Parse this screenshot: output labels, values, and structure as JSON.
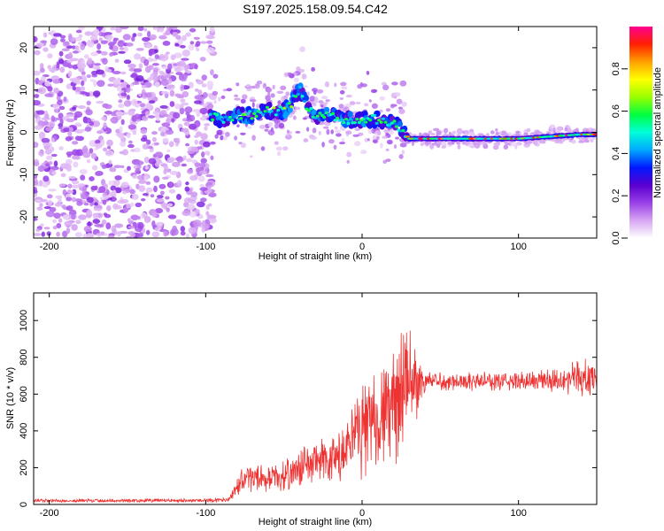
{
  "title": "S197.2025.158.09.54.C42",
  "chart_data": [
    {
      "type": "heatmap",
      "title": "S197.2025.158.09.54.C42",
      "xlabel": "Height of straight line (km)",
      "ylabel": "Frequency (Hz)",
      "xlim": [
        -210,
        150
      ],
      "ylim": [
        -25,
        25
      ],
      "x_ticks": [
        -200,
        -100,
        0,
        100
      ],
      "y_ticks": [
        -20,
        -10,
        0,
        10,
        20
      ],
      "colorbar": {
        "label": "Normalized spectral amplitude",
        "range": [
          0,
          1
        ],
        "ticks": [
          0.0,
          0.2,
          0.4,
          0.6,
          0.8
        ],
        "colormap": [
          "#ffffff",
          "#d7a6f2",
          "#9a40e8",
          "#5a00d0",
          "#0018ff",
          "#00aaff",
          "#00ffd8",
          "#00ff40",
          "#9aff00",
          "#ffff00",
          "#ffa000",
          "#ff2000",
          "#ff0090"
        ]
      },
      "ridge_x": [
        -97,
        -90,
        -80,
        -70,
        -60,
        -50,
        -45,
        -40,
        -35,
        -30,
        -20,
        -10,
        0,
        10,
        20,
        25,
        30,
        40,
        50,
        60,
        80,
        100,
        120,
        140,
        150
      ],
      "ridge_y": [
        4,
        3,
        4,
        4,
        5,
        5,
        7,
        10,
        6,
        4,
        4,
        3,
        3,
        3,
        2,
        1,
        -1.5,
        -1.5,
        -1.5,
        -1.5,
        -1.5,
        -1.5,
        -1,
        -0.5,
        -0.5
      ],
      "noise_region_x": [
        -210,
        -95
      ]
    },
    {
      "type": "line",
      "xlabel": "Height of straight line (km)",
      "ylabel": "SNR (10 * v/v)",
      "xlim": [
        -210,
        150
      ],
      "ylim": [
        0,
        1150
      ],
      "x_ticks": [
        -200,
        -100,
        0,
        100
      ],
      "y_ticks": [
        0,
        200,
        400,
        600,
        800,
        1000
      ],
      "color": "#ee3333",
      "envelope_x": [
        -210,
        -100,
        -85,
        -80,
        -75,
        -60,
        -50,
        -40,
        -30,
        -20,
        -10,
        0,
        10,
        20,
        25,
        30,
        40,
        50,
        100,
        120,
        140,
        150
      ],
      "envelope_mean": [
        20,
        22,
        25,
        90,
        150,
        140,
        150,
        200,
        230,
        230,
        280,
        430,
        480,
        520,
        620,
        650,
        670,
        670,
        670,
        680,
        690,
        680
      ],
      "envelope_spread": [
        12,
        12,
        15,
        60,
        90,
        80,
        90,
        120,
        150,
        160,
        220,
        300,
        330,
        380,
        420,
        350,
        80,
        60,
        60,
        80,
        110,
        110
      ]
    }
  ]
}
